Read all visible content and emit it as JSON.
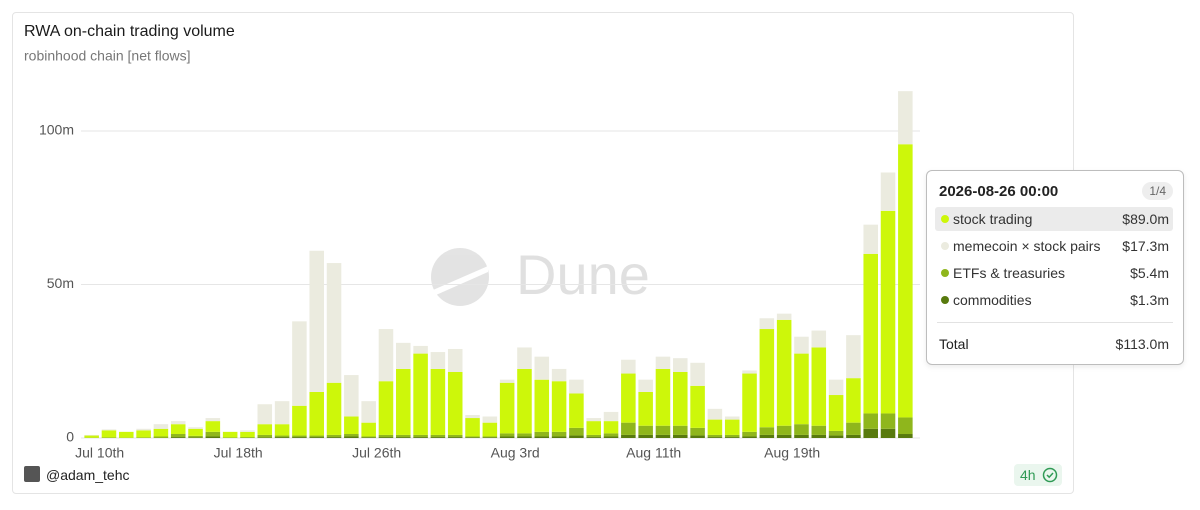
{
  "chart_data": {
    "type": "stacked-bar",
    "title": "RWA on-chain trading volume",
    "subtitle": "robinhood chain [net flows]",
    "watermark": "Dune",
    "author": "@adam_tehc",
    "freshness": "4h",
    "categories": [
      "Jul 10th",
      null,
      null,
      null,
      null,
      null,
      null,
      null,
      "Jul 18th",
      null,
      null,
      null,
      null,
      null,
      null,
      null,
      "Jul 26th",
      null,
      null,
      null,
      null,
      null,
      null,
      null,
      "Aug 3rd",
      null,
      null,
      null,
      null,
      null,
      null,
      null,
      "Aug 11th",
      null,
      null,
      null,
      null,
      null,
      null,
      null,
      "Aug 19th",
      null,
      null,
      null,
      null,
      null,
      null,
      null
    ],
    "series": [
      {
        "name": "stock trading",
        "color": "#cdf70a",
        "values": [
          0.7,
          2.3,
          1.9,
          2.3,
          2.5,
          3.2,
          2.3,
          3.5,
          1.8,
          1.7,
          3.5,
          3.7,
          9.7,
          14.2,
          17,
          5.7,
          4.5,
          17.5,
          21.5,
          26.5,
          21.5,
          20.5,
          6,
          4.5,
          16.5,
          21,
          17,
          16.5,
          11.2,
          4.5,
          4,
          16,
          11,
          18.5,
          17.5,
          13.7,
          5,
          5,
          19,
          32,
          34.5,
          23,
          25.5,
          11.7,
          14.5,
          52,
          66,
          89
        ]
      },
      {
        "name": "memecoin × stock pairs",
        "color": "#ebebdf",
        "values": [
          0.2,
          0.3,
          0,
          0.5,
          1.5,
          1,
          0.5,
          1,
          0,
          0.5,
          6.5,
          7.5,
          27.5,
          46,
          39,
          13.5,
          7,
          17,
          8.5,
          2.5,
          5.5,
          7.5,
          1,
          2,
          1,
          7,
          7.5,
          4,
          4.5,
          1,
          3,
          4.5,
          4,
          4,
          4.5,
          7.5,
          3.5,
          1,
          1,
          3.5,
          2,
          5.5,
          5.5,
          5,
          14,
          9.5,
          12.5,
          17.3
        ]
      },
      {
        "name": "ETFs & treasuries",
        "color": "#8fb61c",
        "values": [
          0.1,
          0.2,
          0.1,
          0.2,
          0.5,
          1,
          0.5,
          1.5,
          0.2,
          0.3,
          0.8,
          0.5,
          0.5,
          0.5,
          0.7,
          0.8,
          0.3,
          0.7,
          0.7,
          0.7,
          0.7,
          0.7,
          0.3,
          0.3,
          1,
          1,
          1.5,
          1.5,
          2.5,
          0.7,
          1,
          4,
          3,
          3,
          3,
          2.5,
          0.7,
          0.7,
          1.5,
          2.5,
          3,
          3.5,
          3,
          1.5,
          4,
          5,
          5,
          5.4
        ]
      },
      {
        "name": "commodities",
        "color": "#587a0e",
        "values": [
          0,
          0,
          0,
          0,
          0,
          0.3,
          0.2,
          0.5,
          0,
          0,
          0.2,
          0.3,
          0.3,
          0.3,
          0.3,
          0.5,
          0.2,
          0.3,
          0.3,
          0.3,
          0.3,
          0.3,
          0.2,
          0.2,
          0.5,
          0.5,
          0.5,
          0.5,
          0.8,
          0.3,
          0.5,
          1,
          1,
          1,
          1,
          0.8,
          0.3,
          0.3,
          0.5,
          1,
          1,
          1,
          1,
          0.8,
          1,
          3,
          3,
          1.3
        ]
      }
    ],
    "ylim": [
      0,
      115
    ],
    "yticks": [
      0,
      {
        "value": 50,
        "label": "50m"
      },
      {
        "value": 100,
        "label": "100m"
      }
    ],
    "grid": true,
    "tooltip": {
      "title": "2026-08-26 00:00",
      "page": "1/4",
      "value_labels": [
        "$89.0m",
        "$17.3m",
        "$5.4m",
        "$1.3m"
      ],
      "total_label": "Total",
      "total": 113,
      "total_value_label": "$113.0m"
    }
  }
}
